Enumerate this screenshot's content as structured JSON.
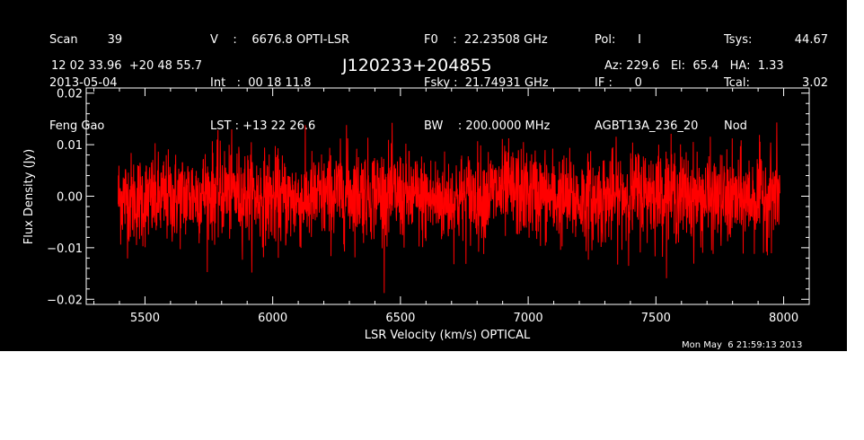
{
  "header": {
    "col1": [
      "Scan        39",
      "2013-05-04",
      "Feng Gao"
    ],
    "col2": [
      "V    :    6676.8 OPTI-LSR",
      "Int   :  00 18 11.8",
      "LST : +13 22 26.6"
    ],
    "col3": [
      "F0    :  22.23508 GHz",
      "Fsky :  21.74931 GHz",
      "BW    : 200.0000 MHz"
    ],
    "col4": [
      "Pol:      I",
      "IF :      0",
      "AGBT13A_236_20"
    ],
    "col5": [
      "Tsys:",
      "Tcal:",
      "Nod"
    ],
    "col6": [
      "44.67",
      "3.02",
      ""
    ],
    "coords": "12 02 33.96  +20 48 55.7",
    "source": "J120233+204855",
    "azelha": "Az: 229.6   El:  65.4   HA:  1.33"
  },
  "timestamp": "Mon May  6 21:59:13 2013",
  "chart_data": {
    "type": "line",
    "title": "J120233+204855",
    "xlabel": "LSR Velocity (km/s) OPTICAL",
    "ylabel": "Flux Density (Jy)",
    "xlim": [
      5270,
      8100
    ],
    "ylim": [
      -0.021,
      0.021
    ],
    "xticks": [
      5500,
      6000,
      6500,
      7000,
      7500,
      8000
    ],
    "yticks": [
      -0.02,
      -0.01,
      0.0,
      0.01,
      0.02
    ],
    "ytick_labels": [
      "−0.02",
      "−0.01",
      "0.00",
      "0.01",
      "0.02"
    ],
    "series": [
      {
        "color": "#ff0000",
        "x_start": 5395,
        "x_end": 7985,
        "noise_sigma": 0.0052,
        "min_value": -0.0188,
        "max_value": 0.0148,
        "mean": 0.0
      }
    ],
    "grid": false
  }
}
